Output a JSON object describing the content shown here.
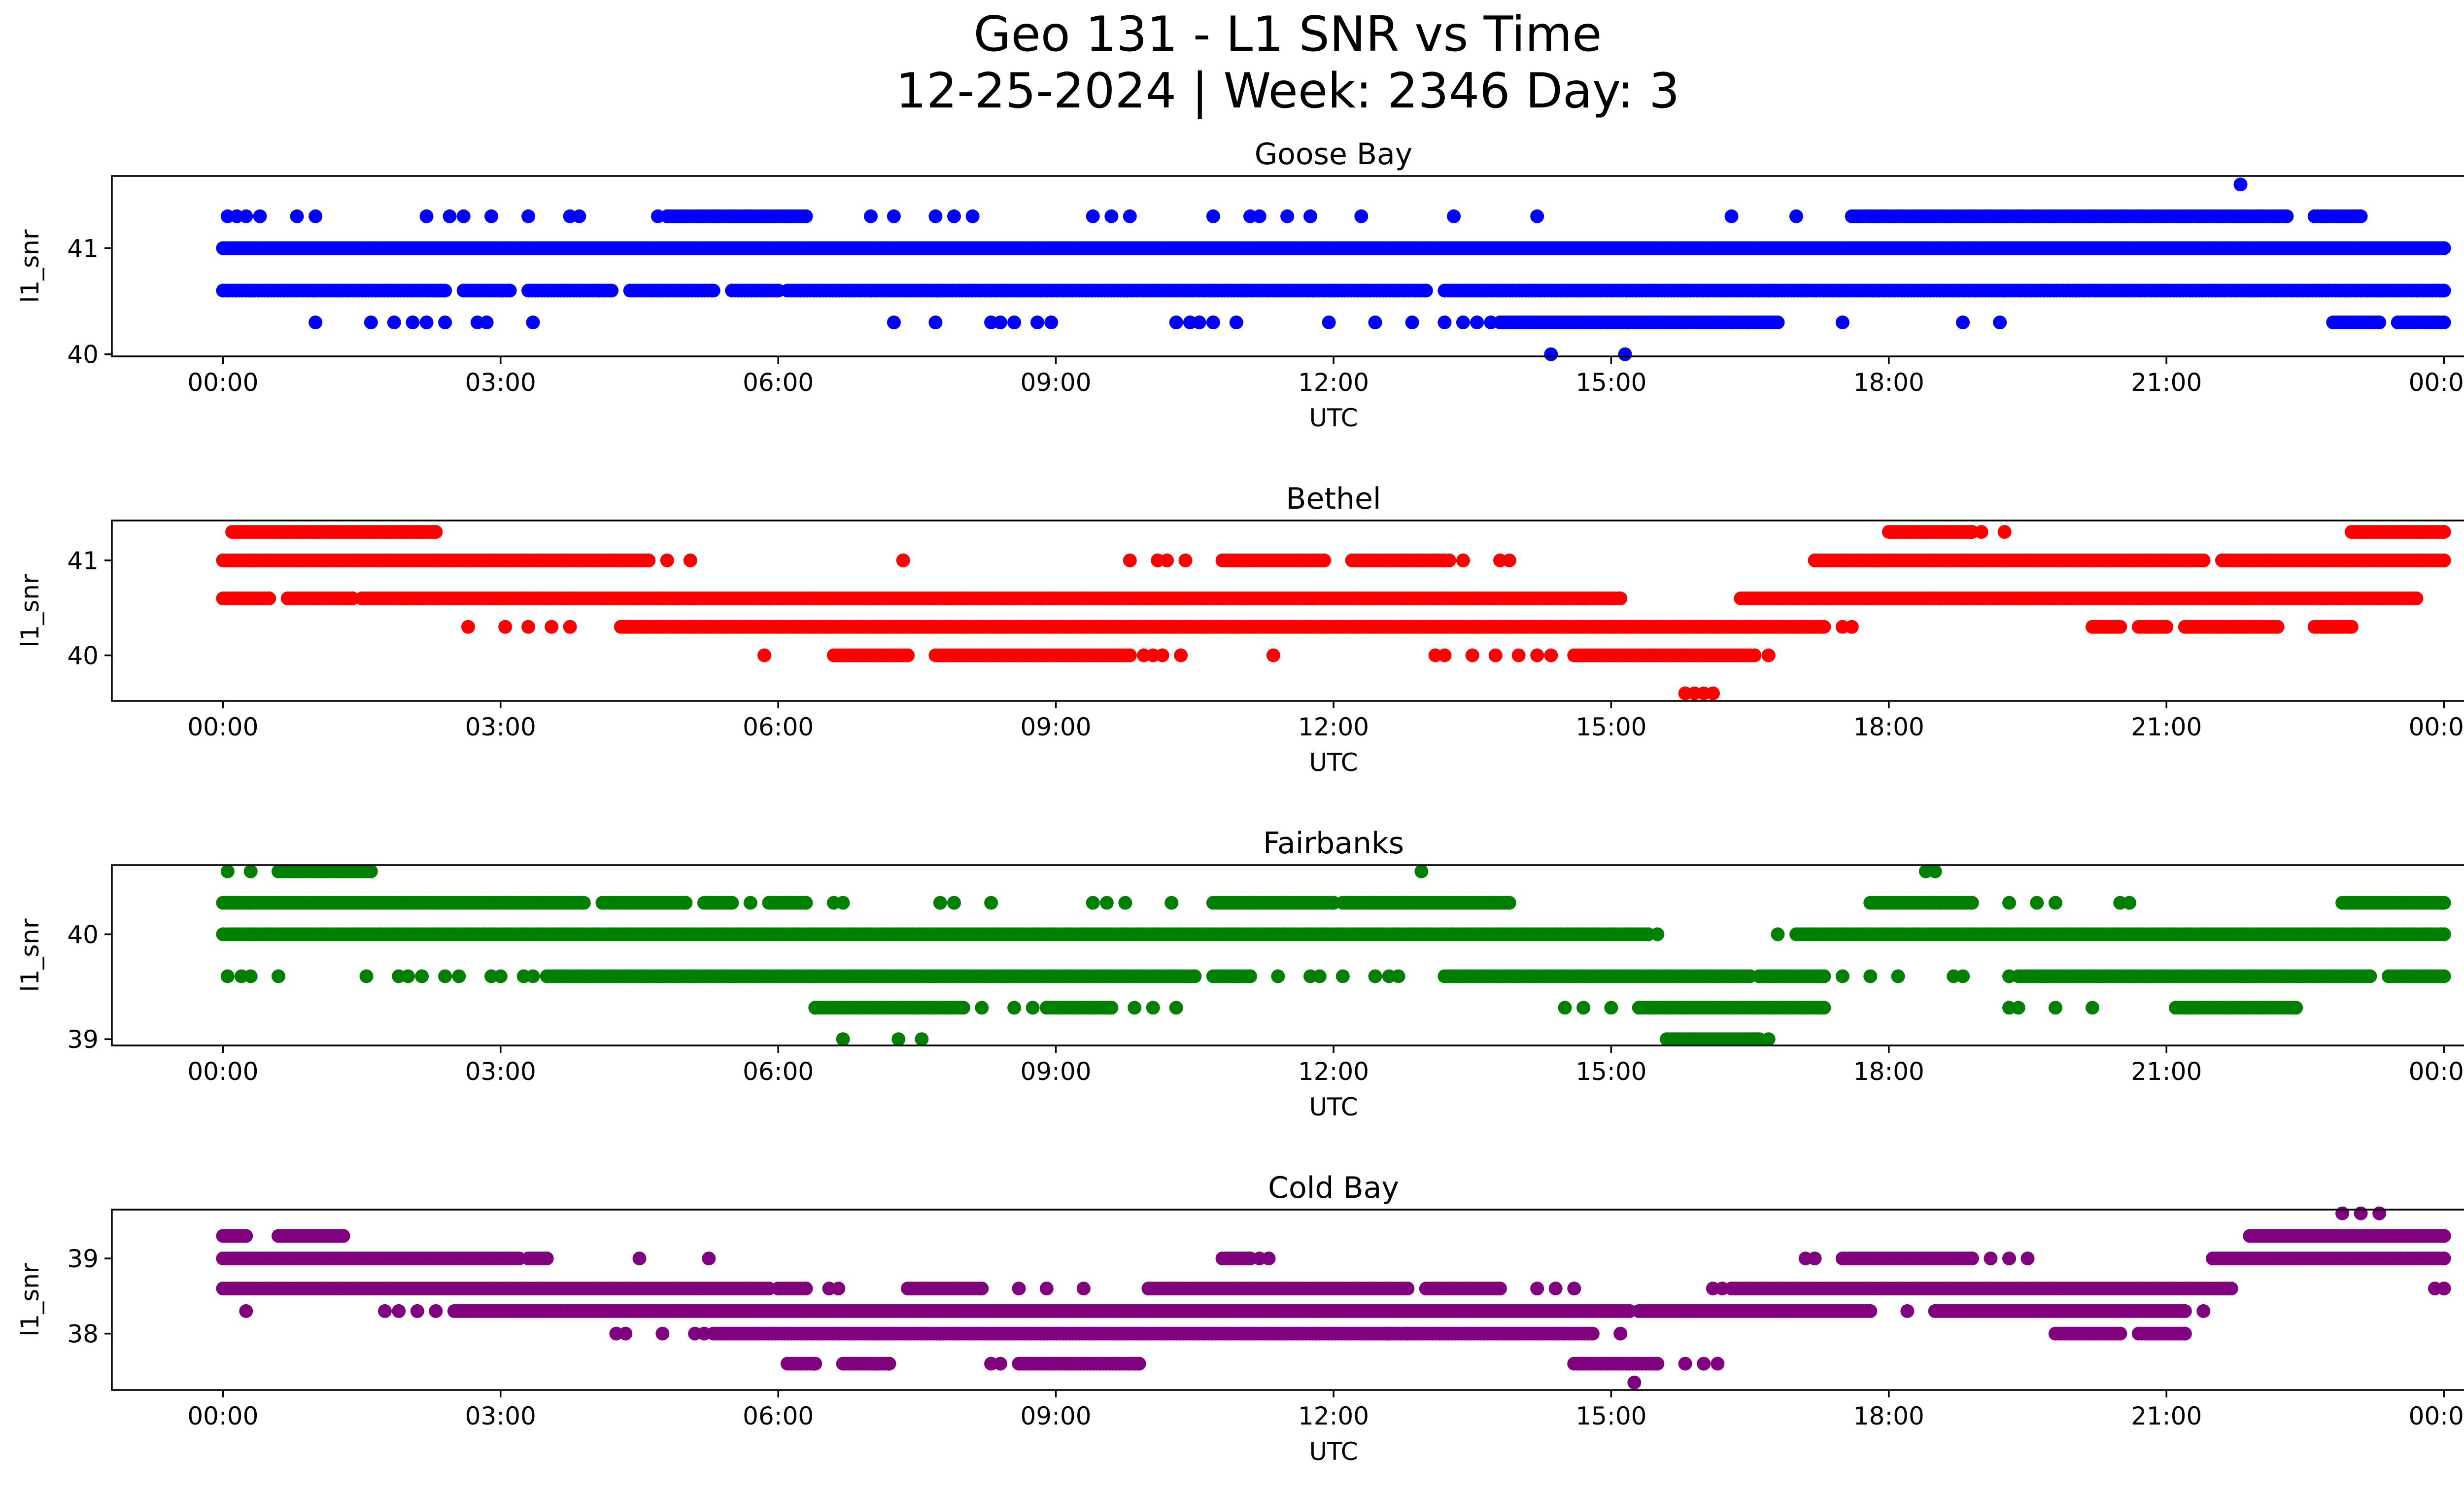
{
  "chart_data": {
    "type": "scatter",
    "title_line1": "Geo 131 - L1 SNR vs Time",
    "title_line2": "12-25-2024 | Week: 2346 Day: 3",
    "xlabel": "UTC",
    "ylabel": "l1_snr",
    "x_range_hours": [
      -1.2,
      25.2
    ],
    "x_ticks": [
      {
        "h": 0,
        "label": "00:00"
      },
      {
        "h": 3,
        "label": "03:00"
      },
      {
        "h": 6,
        "label": "06:00"
      },
      {
        "h": 9,
        "label": "09:00"
      },
      {
        "h": 12,
        "label": "12:00"
      },
      {
        "h": 15,
        "label": "15:00"
      },
      {
        "h": 18,
        "label": "18:00"
      },
      {
        "h": 21,
        "label": "21:00"
      },
      {
        "h": 24,
        "label": "00:00"
      }
    ],
    "panels": [
      {
        "name": "Goose Bay",
        "color": "#0000ff",
        "ylim": [
          39.98,
          41.68
        ],
        "yticks": [
          {
            "v": 40,
            "label": "40"
          },
          {
            "v": 41,
            "label": "41"
          }
        ],
        "dense": [
          {
            "y": 41.0,
            "ranges": [
              [
                0,
                24
              ]
            ]
          },
          {
            "y": 40.6,
            "ranges": [
              [
                0,
                2.4
              ],
              [
                2.6,
                3.1
              ],
              [
                3.3,
                4.2
              ],
              [
                4.4,
                5.3
              ],
              [
                5.5,
                6.0
              ],
              [
                6.1,
                13.0
              ],
              [
                13.2,
                24.0
              ]
            ]
          },
          {
            "y": 40.3,
            "ranges": [
              [
                13.8,
                16.8
              ],
              [
                22.8,
                23.3
              ],
              [
                23.5,
                24.0
              ]
            ]
          },
          {
            "y": 41.3,
            "ranges": [
              [
                4.8,
                6.3
              ],
              [
                17.6,
                22.3
              ],
              [
                22.6,
                23.1
              ]
            ]
          }
        ],
        "sparse": [
          {
            "y": 41.3,
            "hours": [
              0.05,
              0.15,
              0.25,
              0.4,
              0.8,
              1.0,
              2.2,
              2.45,
              2.6,
              2.9,
              3.3,
              3.75,
              3.85,
              4.7,
              7.0,
              7.25,
              7.7,
              7.9,
              8.1,
              9.4,
              9.6,
              9.8,
              10.7,
              11.1,
              11.2,
              11.5,
              11.75,
              12.3,
              13.3,
              14.2,
              16.3,
              17.0
            ]
          },
          {
            "y": 40.3,
            "hours": [
              1.0,
              1.6,
              1.85,
              2.05,
              2.2,
              2.4,
              2.75,
              2.85,
              3.35,
              7.25,
              7.7,
              8.3,
              8.4,
              8.55,
              8.8,
              8.95,
              10.3,
              10.45,
              10.55,
              10.7,
              10.95,
              11.95,
              12.45,
              12.85,
              13.2,
              13.4,
              13.55,
              13.7,
              17.5,
              18.8,
              19.2
            ]
          },
          {
            "y": 40.0,
            "hours": [
              14.35,
              15.15
            ]
          },
          {
            "y": 41.6,
            "hours": [
              21.8
            ]
          }
        ]
      },
      {
        "name": "Bethel",
        "color": "#ff0000",
        "ylim": [
          39.52,
          41.42
        ],
        "yticks": [
          {
            "v": 40,
            "label": "40"
          },
          {
            "v": 41,
            "label": "41"
          }
        ],
        "dense": [
          {
            "y": 41.3,
            "ranges": [
              [
                0.1,
                2.3
              ],
              [
                18.0,
                18.9
              ],
              [
                23.0,
                24.0
              ]
            ]
          },
          {
            "y": 41.0,
            "ranges": [
              [
                0,
                4.6
              ],
              [
                10.8,
                11.9
              ],
              [
                12.2,
                13.2
              ],
              [
                17.2,
                21.4
              ],
              [
                21.6,
                24.0
              ]
            ]
          },
          {
            "y": 40.6,
            "ranges": [
              [
                0,
                0.5
              ],
              [
                0.7,
                1.4
              ],
              [
                1.5,
                15.1
              ],
              [
                16.4,
                23.7
              ]
            ]
          },
          {
            "y": 40.3,
            "ranges": [
              [
                4.3,
                17.3
              ],
              [
                20.2,
                20.5
              ],
              [
                20.7,
                21.0
              ],
              [
                21.2,
                22.2
              ],
              [
                22.6,
                23.0
              ]
            ]
          },
          {
            "y": 40.0,
            "ranges": [
              [
                6.6,
                7.4
              ],
              [
                7.7,
                9.8
              ],
              [
                14.6,
                16.5
              ]
            ]
          }
        ],
        "sparse": [
          {
            "y": 41.3,
            "hours": [
              19.0,
              19.25
            ]
          },
          {
            "y": 41.0,
            "hours": [
              4.8,
              5.05,
              7.35,
              9.8,
              10.1,
              10.2,
              10.4,
              13.25,
              13.4,
              13.8,
              13.9
            ]
          },
          {
            "y": 40.3,
            "hours": [
              2.65,
              3.05,
              3.3,
              3.55,
              3.75,
              17.5,
              17.6
            ]
          },
          {
            "y": 40.0,
            "hours": [
              5.85,
              9.95,
              10.05,
              10.15,
              10.35,
              11.35,
              13.1,
              13.2,
              13.5,
              13.75,
              14.0,
              14.2,
              14.35,
              16.55,
              16.7
            ]
          },
          {
            "y": 39.6,
            "hours": [
              15.8,
              15.9,
              16.0,
              16.1
            ]
          }
        ]
      },
      {
        "name": "Fairbanks",
        "color": "#008000",
        "ylim": [
          38.94,
          40.66
        ],
        "yticks": [
          {
            "v": 39,
            "label": "39"
          },
          {
            "v": 40,
            "label": "40"
          }
        ],
        "dense": [
          {
            "y": 40.6,
            "ranges": [
              [
                0.6,
                1.6
              ]
            ]
          },
          {
            "y": 40.3,
            "ranges": [
              [
                0,
                3.9
              ],
              [
                4.1,
                5.0
              ],
              [
                5.2,
                5.5
              ],
              [
                5.9,
                6.3
              ],
              [
                10.7,
                12.0
              ],
              [
                12.1,
                13.9
              ],
              [
                17.8,
                18.9
              ],
              [
                22.9,
                24.0
              ]
            ]
          },
          {
            "y": 40.0,
            "ranges": [
              [
                0,
                15.4
              ],
              [
                17.0,
                24.0
              ]
            ]
          },
          {
            "y": 39.6,
            "ranges": [
              [
                3.5,
                10.5
              ],
              [
                10.7,
                11.1
              ],
              [
                13.2,
                16.5
              ],
              [
                16.6,
                17.3
              ],
              [
                19.4,
                23.2
              ],
              [
                23.4,
                24.0
              ]
            ]
          },
          {
            "y": 39.3,
            "ranges": [
              [
                6.4,
                8.0
              ],
              [
                8.9,
                9.6
              ],
              [
                15.3,
                17.3
              ],
              [
                21.1,
                22.4
              ]
            ]
          },
          {
            "y": 39.0,
            "ranges": [
              [
                15.6,
                16.6
              ]
            ]
          }
        ],
        "sparse": [
          {
            "y": 40.6,
            "hours": [
              0.05,
              0.3,
              18.4,
              18.5,
              12.95
            ]
          },
          {
            "y": 40.3,
            "hours": [
              5.7,
              6.6,
              6.7,
              7.75,
              7.9,
              8.3,
              9.4,
              9.55,
              9.75,
              10.25,
              19.3,
              19.6,
              19.8,
              20.5,
              20.6
            ]
          },
          {
            "y": 40.0,
            "hours": [
              15.5,
              16.8
            ]
          },
          {
            "y": 39.6,
            "hours": [
              0.05,
              0.2,
              0.3,
              0.6,
              1.55,
              1.9,
              2.0,
              2.15,
              2.4,
              2.55,
              2.9,
              3.0,
              3.25,
              3.35,
              11.4,
              11.75,
              11.85,
              12.1,
              12.45,
              12.6,
              12.7,
              17.5,
              17.8,
              18.1,
              18.7,
              18.8,
              19.3
            ]
          },
          {
            "y": 39.3,
            "hours": [
              6.4,
              8.2,
              8.55,
              8.75,
              9.85,
              10.05,
              10.3,
              14.5,
              14.7,
              15.0,
              19.3,
              19.4,
              19.8,
              20.2
            ]
          },
          {
            "y": 39.0,
            "hours": [
              6.7,
              7.3,
              7.55,
              16.7
            ]
          }
        ]
      },
      {
        "name": "Cold Bay",
        "color": "#800080",
        "ylim": [
          37.25,
          39.65
        ],
        "yticks": [
          {
            "v": 38,
            "label": "38"
          },
          {
            "v": 39,
            "label": "39"
          }
        ],
        "dense": [
          {
            "y": 39.3,
            "ranges": [
              [
                0,
                0.25
              ],
              [
                0.6,
                1.3
              ],
              [
                21.9,
                24.0
              ]
            ]
          },
          {
            "y": 39.0,
            "ranges": [
              [
                0,
                3.2
              ],
              [
                3.3,
                3.5
              ],
              [
                10.8,
                11.1
              ],
              [
                17.5,
                18.9
              ],
              [
                21.5,
                24.0
              ]
            ]
          },
          {
            "y": 38.6,
            "ranges": [
              [
                0,
                5.9
              ],
              [
                6.0,
                6.3
              ],
              [
                7.4,
                8.2
              ],
              [
                10.0,
                12.8
              ],
              [
                13.0,
                13.8
              ],
              [
                16.3,
                21.7
              ]
            ]
          },
          {
            "y": 38.3,
            "ranges": [
              [
                2.5,
                15.2
              ],
              [
                15.3,
                17.8
              ],
              [
                18.5,
                21.2
              ]
            ]
          },
          {
            "y": 38.0,
            "ranges": [
              [
                5.3,
                14.8
              ],
              [
                19.8,
                20.5
              ],
              [
                20.7,
                21.2
              ]
            ]
          },
          {
            "y": 37.6,
            "ranges": [
              [
                6.1,
                6.4
              ],
              [
                6.7,
                7.2
              ],
              [
                8.6,
                9.9
              ],
              [
                14.6,
                15.5
              ]
            ]
          }
        ],
        "sparse": [
          {
            "y": 39.6,
            "hours": [
              22.9,
              23.1,
              23.3
            ]
          },
          {
            "y": 39.0,
            "hours": [
              4.5,
              5.25,
              11.2,
              11.3,
              17.1,
              17.2,
              19.1,
              19.3,
              19.5
            ]
          },
          {
            "y": 38.6,
            "hours": [
              6.55,
              6.65,
              8.6,
              8.9,
              9.3,
              14.2,
              14.4,
              14.6,
              16.1,
              16.2,
              23.9,
              24.0
            ]
          },
          {
            "y": 38.3,
            "hours": [
              0.25,
              1.75,
              1.9,
              2.1,
              2.3,
              18.2,
              18.5,
              21.4
            ]
          },
          {
            "y": 38.0,
            "hours": [
              4.25,
              4.35,
              4.75,
              5.1,
              5.2,
              12.6,
              12.8,
              15.1
            ]
          },
          {
            "y": 37.6,
            "hours": [
              8.3,
              8.4,
              15.8,
              16.0,
              16.15
            ]
          },
          {
            "y": 37.35,
            "hours": [
              15.25
            ]
          }
        ]
      }
    ]
  }
}
